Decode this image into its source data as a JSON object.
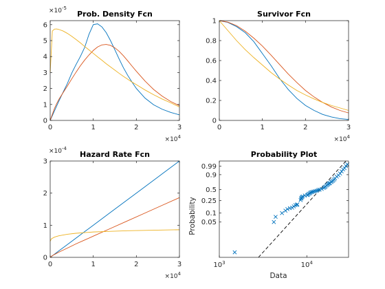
{
  "chart_data": [
    {
      "type": "line",
      "title": "Prob. Density Fcn",
      "xlim": [
        0,
        30000
      ],
      "ylim": [
        0,
        6.25e-05
      ],
      "x_ticks": [
        "0",
        "1",
        "2",
        "3"
      ],
      "y_ticks": [
        "0",
        "1",
        "2",
        "3",
        "4",
        "5",
        "6"
      ],
      "x_exponent": {
        "base": "×10",
        "power": "4"
      },
      "y_exponent": {
        "base": "×10",
        "power": "-5"
      },
      "x": [
        0,
        500,
        1000,
        1500,
        2000,
        3000,
        4000,
        5000,
        6000,
        7000,
        8000,
        9000,
        10000,
        11000,
        12000,
        13000,
        14000,
        15000,
        16000,
        17000,
        18000,
        19000,
        20000,
        22000,
        24000,
        26000,
        28000,
        30000
      ],
      "series": [
        {
          "color": "#0072BD",
          "values": [
            0,
            3e-06,
            6e-06,
            9e-06,
            1.2e-05,
            1.77e-05,
            2.32e-05,
            2.96e-05,
            3.5e-05,
            4e-05,
            4.57e-05,
            5.39e-05,
            6e-05,
            6.05e-05,
            5.86e-05,
            5.5e-05,
            5e-05,
            4.43e-05,
            3.85e-05,
            3.3e-05,
            2.82e-05,
            2.4e-05,
            2e-05,
            1.4e-05,
            9.8e-06,
            7e-06,
            5e-06,
            3.5e-06
          ]
        },
        {
          "color": "#D95319",
          "values": [
            0,
            3.8e-06,
            7.5e-06,
            1.05e-05,
            1.31e-05,
            1.74e-05,
            2.16e-05,
            2.6e-05,
            3.02e-05,
            3.42e-05,
            3.78e-05,
            4.1e-05,
            4.38e-05,
            4.6e-05,
            4.73e-05,
            4.76e-05,
            4.7e-05,
            4.55e-05,
            4.33e-05,
            4.05e-05,
            3.73e-05,
            3.4e-05,
            3.08e-05,
            2.47e-05,
            1.94e-05,
            1.52e-05,
            1.18e-05,
            9.2e-06
          ]
        },
        {
          "color": "#EDB120",
          "values": [
            3e-05,
            5.6e-05,
            5.72e-05,
            5.73e-05,
            5.7e-05,
            5.6e-05,
            5.45e-05,
            5.27e-05,
            5.07e-05,
            4.86e-05,
            4.63e-05,
            4.42e-05,
            4.2e-05,
            3.98e-05,
            3.77e-05,
            3.55e-05,
            3.35e-05,
            3.15e-05,
            2.95e-05,
            2.76e-05,
            2.58e-05,
            2.4e-05,
            2.24e-05,
            1.91e-05,
            1.61e-05,
            1.34e-05,
            1.1e-05,
            8.4e-06
          ]
        }
      ]
    },
    {
      "type": "line",
      "title": "Survivor Fcn",
      "xlim": [
        0,
        30000
      ],
      "ylim": [
        0,
        1
      ],
      "x_ticks": [
        "0",
        "1",
        "2",
        "3"
      ],
      "y_ticks": [
        "0",
        "0.2",
        "0.4",
        "0.6",
        "0.8",
        "1"
      ],
      "x_exponent": {
        "base": "×10",
        "power": "4"
      },
      "x": [
        0,
        2000,
        4000,
        6000,
        8000,
        10000,
        12000,
        14000,
        16000,
        18000,
        20000,
        22000,
        24000,
        26000,
        28000,
        30000
      ],
      "series": [
        {
          "color": "#0072BD",
          "values": [
            1.0,
            0.982,
            0.94,
            0.88,
            0.79,
            0.67,
            0.55,
            0.42,
            0.31,
            0.22,
            0.15,
            0.1,
            0.06,
            0.035,
            0.018,
            0.01
          ]
        },
        {
          "color": "#D95319",
          "values": [
            1.0,
            0.985,
            0.95,
            0.895,
            0.825,
            0.745,
            0.655,
            0.56,
            0.465,
            0.38,
            0.3,
            0.235,
            0.18,
            0.135,
            0.1,
            0.075
          ]
        },
        {
          "color": "#EDB120",
          "values": [
            1.0,
            0.9,
            0.8,
            0.71,
            0.63,
            0.555,
            0.48,
            0.415,
            0.355,
            0.3,
            0.255,
            0.215,
            0.18,
            0.15,
            0.125,
            0.1
          ]
        }
      ]
    },
    {
      "type": "line",
      "title": "Hazard Rate Fcn",
      "xlim": [
        0,
        30000
      ],
      "ylim": [
        0,
        0.0003
      ],
      "x_ticks": [
        "0",
        "1",
        "2",
        "3"
      ],
      "y_ticks": [
        "0",
        "1",
        "2",
        "3"
      ],
      "x_exponent": {
        "base": "×10",
        "power": "4"
      },
      "y_exponent": {
        "base": "×10",
        "power": "-4"
      },
      "x": [
        0,
        300,
        1000,
        2000,
        4000,
        6000,
        8000,
        10000,
        14000,
        18000,
        22000,
        26000,
        30000
      ],
      "series": [
        {
          "color": "#0072BD",
          "values": [
            0,
            3e-06,
            1e-05,
            2e-05,
            4e-05,
            6e-05,
            8e-05,
            0.0001,
            0.00014,
            0.00018,
            0.00022,
            0.00026,
            0.0003
          ]
        },
        {
          "color": "#D95319",
          "values": [
            0,
            3.4e-06,
            9e-06,
            1.6e-05,
            2.9e-05,
            4.2e-05,
            5.4e-05,
            6.6e-05,
            9e-05,
            0.000114,
            0.000138,
            0.000162,
            0.000186
          ]
        },
        {
          "color": "#EDB120",
          "values": [
            5e-05,
            5.8e-05,
            6.3e-05,
            6.7e-05,
            7.2e-05,
            7.5e-05,
            7.7e-05,
            7.9e-05,
            8.1e-05,
            8.3e-05,
            8.4e-05,
            8.5e-05,
            8.6e-05
          ]
        }
      ]
    },
    {
      "type": "scatter",
      "title": "Probability Plot",
      "xlabel": "Data",
      "ylabel": "Probability",
      "x_scale": "log",
      "xlim": [
        1000,
        30000
      ],
      "x_ticks": [
        {
          "base": "10",
          "power": "3",
          "value": 1000
        },
        {
          "base": "10",
          "power": "4",
          "value": 10000
        }
      ],
      "y_scale": "weibull-probability",
      "ylim": [
        0.003,
        0.999
      ],
      "y_ticks": [
        0.05,
        0.1,
        0.25,
        0.5,
        0.9,
        0.99
      ],
      "y_tick_labels": [
        "0.05",
        "0.1",
        "0.25",
        "0.5",
        "0.9",
        "0.99"
      ],
      "fit_line": {
        "style": "dashed",
        "color": "#000000",
        "x": [
          2800,
          28000
        ],
        "y": [
          0.003,
          0.999
        ]
      },
      "marker": "x",
      "marker_color": "#0072BD",
      "points": {
        "x": [
          1500,
          4200,
          4400,
          5200,
          5700,
          6000,
          6400,
          6800,
          7100,
          7400,
          7700,
          7800,
          8500,
          8600,
          8700,
          8800,
          9000,
          9500,
          10100,
          10300,
          10500,
          10800,
          11000,
          11300,
          11600,
          12000,
          12500,
          13000,
          13500,
          14000,
          14800,
          15600,
          16000,
          16400,
          16800,
          17200,
          17600,
          18000,
          18400,
          19000,
          19400,
          20000,
          20500,
          21000,
          22000,
          23000,
          24000,
          25000,
          26000,
          27000,
          28000,
          29000
        ],
        "y": [
          0.0045,
          0.05,
          0.075,
          0.1,
          0.12,
          0.135,
          0.145,
          0.15,
          0.165,
          0.18,
          0.185,
          0.19,
          0.26,
          0.285,
          0.3,
          0.32,
          0.33,
          0.35,
          0.36,
          0.37,
          0.39,
          0.4,
          0.42,
          0.43,
          0.44,
          0.45,
          0.46,
          0.47,
          0.49,
          0.5,
          0.52,
          0.55,
          0.57,
          0.59,
          0.62,
          0.64,
          0.66,
          0.68,
          0.69,
          0.72,
          0.74,
          0.76,
          0.79,
          0.82,
          0.86,
          0.89,
          0.92,
          0.95,
          0.97,
          0.98,
          0.99,
          0.995
        ]
      }
    }
  ]
}
